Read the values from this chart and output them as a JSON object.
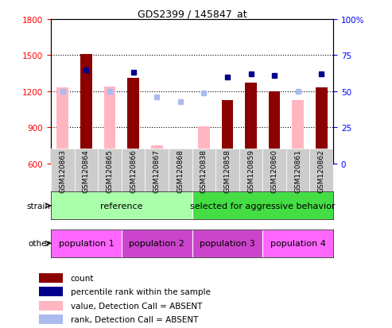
{
  "title": "GDS2399 / 145847_at",
  "samples": [
    "GSM120863",
    "GSM120864",
    "GSM120865",
    "GSM120866",
    "GSM120867",
    "GSM120868",
    "GSM120838",
    "GSM120858",
    "GSM120859",
    "GSM120860",
    "GSM120861",
    "GSM120862"
  ],
  "count_values": [
    null,
    1510,
    null,
    1310,
    null,
    null,
    null,
    1130,
    1270,
    1200,
    null,
    1230
  ],
  "count_absent": [
    1230,
    null,
    1240,
    null,
    750,
    690,
    910,
    null,
    null,
    null,
    1130,
    null
  ],
  "percentile_present": [
    null,
    65,
    null,
    63,
    null,
    null,
    null,
    60,
    62,
    61,
    null,
    62
  ],
  "percentile_absent": [
    50,
    null,
    50,
    null,
    46,
    43,
    49,
    null,
    null,
    null,
    50,
    null
  ],
  "ylim": [
    600,
    1800
  ],
  "yticks": [
    600,
    900,
    1200,
    1500,
    1800
  ],
  "y2lim": [
    0,
    100
  ],
  "y2ticks": [
    0,
    25,
    50,
    75,
    100
  ],
  "strain_groups": [
    {
      "label": "reference",
      "start": 0,
      "end": 6,
      "color": "#aaffaa"
    },
    {
      "label": "selected for aggressive behavior",
      "start": 6,
      "end": 12,
      "color": "#44dd44"
    }
  ],
  "other_groups": [
    {
      "label": "population 1",
      "start": 0,
      "end": 3,
      "color": "#ff66ff"
    },
    {
      "label": "population 2",
      "start": 3,
      "end": 6,
      "color": "#cc44cc"
    },
    {
      "label": "population 3",
      "start": 6,
      "end": 9,
      "color": "#cc44cc"
    },
    {
      "label": "population 4",
      "start": 9,
      "end": 12,
      "color": "#ff66ff"
    }
  ],
  "count_color": "#8B0000",
  "count_absent_color": "#FFB6C1",
  "percentile_color": "#00008B",
  "percentile_absent_color": "#AABBEE",
  "legend_items": [
    {
      "label": "count",
      "color": "#8B0000"
    },
    {
      "label": "percentile rank within the sample",
      "color": "#00008B"
    },
    {
      "label": "value, Detection Call = ABSENT",
      "color": "#FFB6C1"
    },
    {
      "label": "rank, Detection Call = ABSENT",
      "color": "#AABBEE"
    }
  ]
}
